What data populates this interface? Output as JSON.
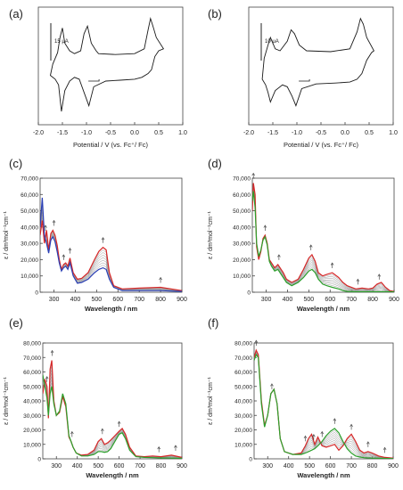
{
  "panels": [
    {
      "label": "(a)",
      "kind": "cv",
      "scalebar": "15 μA",
      "xlabel": "Potential / V (vs. Fc⁺/ Fc)",
      "xticks": [
        "-2.0",
        "-1.5",
        "-1.0",
        "-0.5",
        "0.0",
        "0.5",
        "1.0"
      ]
    },
    {
      "label": "(b)",
      "kind": "cv",
      "scalebar": "10 μA",
      "xlabel": "Potential / V (vs. Fc⁺/ Fc)",
      "xticks": [
        "-2.0",
        "-1.5",
        "-1.0",
        "-0.5",
        "0.0",
        "0.5",
        "1.0"
      ]
    },
    {
      "label": "(c)",
      "kind": "uv",
      "ylabel": "ε / dm³mol⁻¹cm⁻¹",
      "xlabel": "Wavelength / nm",
      "xticks": [
        "300",
        "400",
        "500",
        "600",
        "700",
        "800",
        "900"
      ],
      "yticks": [
        "0",
        "10,000",
        "20,000",
        "30,000",
        "40,000",
        "50,000",
        "60,000",
        "70,000"
      ]
    },
    {
      "label": "(d)",
      "kind": "uv",
      "ylabel": "ε / dm³mol⁻¹cm⁻¹",
      "xlabel": "Wavelength / nm",
      "xticks": [
        "300",
        "400",
        "500",
        "600",
        "700",
        "800",
        "900"
      ],
      "yticks": [
        "0",
        "10,000",
        "20,000",
        "30,000",
        "40,000",
        "50,000",
        "60,000",
        "70,000"
      ]
    },
    {
      "label": "(e)",
      "kind": "uv",
      "ylabel": "ε / dm³mol⁻¹cm⁻¹",
      "xlabel": "Wavelength / nm",
      "xticks": [
        "300",
        "400",
        "500",
        "600",
        "700",
        "800",
        "900"
      ],
      "yticks": [
        "0",
        "10,000",
        "20,000",
        "30,000",
        "40,000",
        "50,000",
        "60,000",
        "70,000",
        "80,000"
      ]
    },
    {
      "label": "(f)",
      "kind": "uv",
      "ylabel": "ε / dm³mol⁻¹cm⁻¹",
      "xlabel": "Wavelength / nm",
      "xticks": [
        "300",
        "400",
        "500",
        "600",
        "700",
        "800",
        "900"
      ],
      "yticks": [
        "0",
        "10,000",
        "20,000",
        "30,000",
        "40,000",
        "50,000",
        "60,000",
        "70,000",
        "80,000"
      ]
    }
  ],
  "chart_data": [
    {
      "type": "line",
      "xlabel": "Potential / V (vs. Fc⁺/ Fc)",
      "xlim": [
        -2.0,
        1.0
      ],
      "series": [
        {
          "x": [
            -1.75,
            -1.65,
            -1.58,
            -1.52,
            -1.45,
            -1.35,
            -1.25,
            -1.15,
            -1.05,
            -0.95,
            -0.85,
            -0.6,
            -0.3,
            0.0,
            0.15,
            0.28,
            0.35,
            0.42,
            0.5,
            0.6,
            0.6,
            0.45,
            0.38,
            0.33,
            0.28,
            0.2,
            0.0,
            -0.4,
            -0.75,
            -0.8,
            -0.9,
            -0.98,
            -1.05,
            -1.12,
            -1.25,
            -1.35,
            -1.45,
            -1.5,
            -1.55,
            -1.6,
            -1.7,
            -1.75
          ],
          "y": [
            -0.4,
            -0.6,
            -0.9,
            -2.3,
            -1.2,
            -0.7,
            -0.5,
            -0.6,
            -1.3,
            -2.0,
            -1.0,
            -0.7,
            -0.65,
            -0.6,
            -0.5,
            -0.3,
            -0.1,
            0.6,
            0.9,
            1.0,
            1.0,
            1.6,
            2.2,
            2.6,
            2.0,
            1.0,
            0.75,
            0.7,
            0.75,
            0.9,
            1.3,
            2.2,
            1.8,
            0.9,
            0.75,
            0.9,
            1.3,
            2.1,
            1.6,
            0.8,
            0.2,
            -0.4
          ]
        }
      ]
    },
    {
      "type": "line",
      "xlabel": "Potential / V (vs. Fc⁺/ Fc)",
      "xlim": [
        -2.0,
        1.0
      ],
      "series": [
        {
          "x": [
            -1.72,
            -1.65,
            -1.6,
            -1.55,
            -1.45,
            -1.3,
            -1.2,
            -1.1,
            -1.02,
            -0.9,
            -0.6,
            -0.2,
            0.1,
            0.25,
            0.35,
            0.45,
            0.55,
            0.6,
            0.6,
            0.45,
            0.38,
            0.32,
            0.25,
            0.1,
            -0.3,
            -0.8,
            -0.95,
            -1.05,
            -1.12,
            -1.2,
            -1.35,
            -1.45,
            -1.55,
            -1.6,
            -1.68,
            -1.72
          ],
          "y": [
            -0.6,
            -0.9,
            -1.3,
            -1.8,
            -1.2,
            -0.9,
            -1.0,
            -1.5,
            -2.0,
            -1.1,
            -0.85,
            -0.8,
            -0.75,
            -0.6,
            -0.3,
            0.4,
            0.8,
            0.9,
            0.9,
            1.6,
            2.3,
            2.6,
            1.9,
            1.0,
            0.85,
            0.9,
            1.2,
            1.8,
            2.0,
            1.4,
            0.9,
            1.0,
            1.6,
            1.2,
            0.5,
            -0.6
          ]
        }
      ]
    },
    {
      "type": "line",
      "xlabel": "Wavelength / nm",
      "ylabel": "ε / dm³mol⁻¹cm⁻¹",
      "xlim": [
        235,
        900
      ],
      "ylim": [
        0,
        70000
      ],
      "series": [
        {
          "color": "#d62728",
          "x": [
            235,
            245,
            255,
            265,
            275,
            285,
            295,
            305,
            315,
            325,
            335,
            345,
            355,
            365,
            375,
            390,
            410,
            430,
            460,
            490,
            510,
            530,
            545,
            560,
            580,
            620,
            700,
            800,
            900
          ],
          "y": [
            35000,
            44000,
            30000,
            38000,
            26000,
            36000,
            38000,
            35000,
            29000,
            20000,
            14000,
            17000,
            18000,
            16000,
            21000,
            12000,
            8000,
            8500,
            12000,
            20000,
            25000,
            27500,
            26000,
            12000,
            4000,
            2000,
            2500,
            3000,
            1000
          ]
        },
        {
          "color": "#2a3fb5",
          "x": [
            235,
            245,
            255,
            265,
            275,
            285,
            295,
            305,
            315,
            325,
            335,
            345,
            355,
            365,
            375,
            390,
            410,
            430,
            460,
            490,
            510,
            530,
            545,
            560,
            580,
            620,
            700,
            800,
            900
          ],
          "y": [
            40000,
            58000,
            35000,
            30000,
            24000,
            32000,
            34000,
            31000,
            25000,
            18000,
            13000,
            15000,
            16000,
            14000,
            18000,
            10000,
            5500,
            6000,
            8000,
            12000,
            14000,
            15000,
            14000,
            8000,
            3000,
            1000,
            1000,
            1000,
            500
          ]
        }
      ]
    },
    {
      "type": "line",
      "xlabel": "Wavelength / nm",
      "ylabel": "ε / dm³mol⁻¹cm⁻¹",
      "xlim": [
        235,
        900
      ],
      "ylim": [
        0,
        70000
      ],
      "series": [
        {
          "color": "#d62728",
          "x": [
            235,
            240,
            248,
            255,
            265,
            275,
            285,
            295,
            305,
            315,
            325,
            340,
            355,
            370,
            380,
            395,
            420,
            450,
            475,
            500,
            515,
            530,
            545,
            565,
            585,
            610,
            640,
            660,
            680,
            720,
            750,
            780,
            800,
            820,
            840,
            860,
            880,
            900
          ],
          "y": [
            50000,
            67000,
            60000,
            28000,
            20000,
            25000,
            33000,
            35000,
            30000,
            20000,
            18000,
            15000,
            17000,
            14000,
            12000,
            8000,
            6000,
            8000,
            14000,
            21000,
            23000,
            19000,
            12000,
            10000,
            11000,
            12000,
            9000,
            6000,
            4000,
            2000,
            2500,
            2000,
            2500,
            5000,
            6000,
            3000,
            1000,
            500
          ]
        },
        {
          "color": "#2ca02c",
          "x": [
            235,
            240,
            248,
            255,
            265,
            275,
            285,
            295,
            305,
            315,
            325,
            340,
            355,
            370,
            380,
            395,
            420,
            450,
            475,
            500,
            515,
            530,
            545,
            565,
            585,
            610,
            640,
            660,
            680,
            720,
            750,
            780,
            800,
            820,
            840,
            860,
            880,
            900
          ],
          "y": [
            56000,
            62000,
            52000,
            30000,
            22000,
            26000,
            32000,
            34000,
            29000,
            19000,
            16000,
            13000,
            14000,
            11000,
            9000,
            6000,
            4000,
            6000,
            9000,
            13000,
            14000,
            12000,
            8000,
            5000,
            4000,
            3000,
            2000,
            1000,
            500,
            300,
            300,
            300,
            300,
            300,
            300,
            300,
            300,
            300
          ]
        }
      ]
    },
    {
      "type": "line",
      "xlabel": "Wavelength / nm",
      "ylabel": "ε / dm³mol⁻¹cm⁻¹",
      "xlim": [
        235,
        900
      ],
      "ylim": [
        0,
        80000
      ],
      "series": [
        {
          "color": "#d62728",
          "x": [
            235,
            245,
            255,
            262,
            270,
            278,
            288,
            300,
            315,
            330,
            345,
            360,
            370,
            380,
            395,
            420,
            450,
            480,
            500,
            515,
            530,
            545,
            560,
            580,
            600,
            615,
            630,
            650,
            680,
            720,
            760,
            800,
            850,
            900
          ],
          "y": [
            45000,
            55000,
            50000,
            28000,
            62000,
            68000,
            40000,
            30000,
            32000,
            43000,
            36000,
            15000,
            12000,
            8000,
            4000,
            2500,
            3000,
            6000,
            12000,
            14000,
            10000,
            11000,
            13000,
            16000,
            19000,
            21000,
            17000,
            8000,
            2000,
            1500,
            2000,
            1500,
            2500,
            1000
          ]
        },
        {
          "color": "#2ca02c",
          "x": [
            235,
            245,
            255,
            262,
            270,
            278,
            288,
            300,
            315,
            330,
            345,
            360,
            370,
            380,
            395,
            420,
            450,
            480,
            500,
            515,
            530,
            545,
            560,
            580,
            600,
            615,
            630,
            650,
            680,
            720,
            760,
            800,
            850,
            900
          ],
          "y": [
            58000,
            50000,
            42000,
            30000,
            45000,
            50000,
            38000,
            30000,
            33000,
            45000,
            38000,
            16000,
            12000,
            8000,
            4000,
            2000,
            2000,
            3000,
            5000,
            5000,
            4500,
            5000,
            7000,
            12000,
            17000,
            18000,
            14000,
            6000,
            1500,
            1000,
            800,
            600,
            500,
            400
          ]
        }
      ]
    },
    {
      "type": "line",
      "xlabel": "Wavelength / nm",
      "ylabel": "ε / dm³mol⁻¹cm⁻¹",
      "xlim": [
        235,
        900
      ],
      "ylim": [
        0,
        80000
      ],
      "series": [
        {
          "color": "#d62728",
          "x": [
            235,
            245,
            255,
            270,
            285,
            300,
            315,
            330,
            345,
            360,
            380,
            420,
            460,
            480,
            495,
            510,
            525,
            540,
            560,
            580,
            600,
            620,
            640,
            660,
            680,
            700,
            720,
            740,
            760,
            780,
            800,
            830,
            860,
            900
          ],
          "y": [
            70000,
            75000,
            72000,
            40000,
            23000,
            30000,
            45000,
            48000,
            38000,
            14000,
            5000,
            3000,
            4000,
            9000,
            14000,
            17000,
            10000,
            15000,
            9000,
            8000,
            9000,
            10000,
            6000,
            9000,
            14000,
            17000,
            12000,
            6000,
            4000,
            5000,
            4000,
            2000,
            1000,
            500
          ]
        },
        {
          "color": "#2ca02c",
          "x": [
            235,
            245,
            255,
            270,
            285,
            300,
            315,
            330,
            345,
            360,
            380,
            420,
            460,
            480,
            495,
            510,
            525,
            540,
            560,
            580,
            600,
            620,
            640,
            660,
            680,
            700,
            720,
            740,
            760,
            780,
            800,
            830,
            860,
            900
          ],
          "y": [
            68000,
            72000,
            70000,
            38000,
            22000,
            30000,
            45000,
            48000,
            38000,
            14000,
            5000,
            3000,
            3000,
            4000,
            5000,
            6000,
            7000,
            9000,
            12000,
            16000,
            19000,
            21000,
            18000,
            12000,
            7000,
            4000,
            2000,
            1200,
            800,
            600,
            500,
            400,
            300,
            200
          ]
        }
      ]
    }
  ]
}
